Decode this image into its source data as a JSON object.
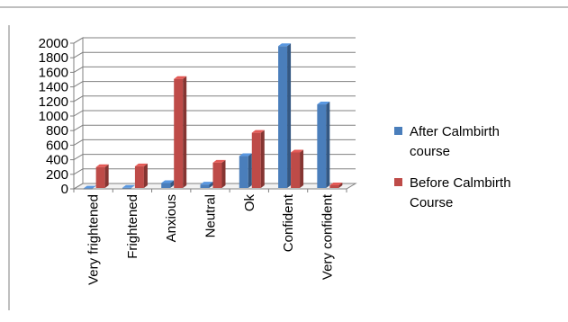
{
  "chart_data": {
    "type": "bar",
    "categories": [
      "Very frightened",
      "Frightened",
      "Anxious",
      "Neutral",
      "Ok",
      "Confident",
      "Very confident"
    ],
    "series": [
      {
        "name": "After Calmbirth course",
        "values": [
          5,
          15,
          80,
          60,
          450,
          1960,
          1160
        ],
        "color": "#4a7ebb"
      },
      {
        "name": "Before Calmbirth Course",
        "values": [
          300,
          310,
          1510,
          360,
          770,
          500,
          50
        ],
        "color": "#be4b48"
      }
    ],
    "ylim": [
      0,
      2000
    ],
    "yticks": [
      0,
      200,
      400,
      600,
      800,
      1000,
      1200,
      1400,
      1600,
      1800,
      2000
    ],
    "grid": true,
    "legend_position": "right",
    "title": "",
    "xlabel": "",
    "ylabel": ""
  }
}
